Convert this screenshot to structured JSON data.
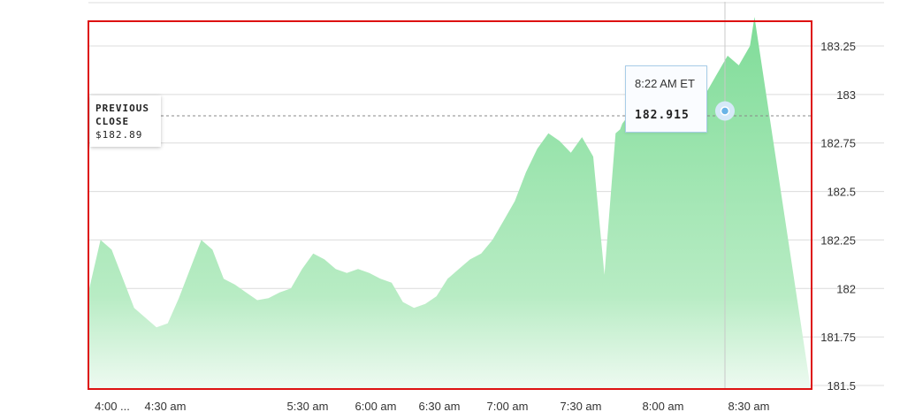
{
  "chart_data": {
    "type": "area",
    "x_tick_labels": [
      "4:00 ...",
      "4:30 am",
      "5:30 am",
      "6:00 am",
      "6:30 am",
      "7:00 am",
      "7:30 am",
      "8:00 am",
      "8:30 am"
    ],
    "y_tick_labels": [
      "183.25",
      "183",
      "182.75",
      "182.5",
      "182.25",
      "182",
      "181.75",
      "181.5"
    ],
    "y_ticks": [
      183.25,
      183,
      182.75,
      182.5,
      182.25,
      182,
      181.75,
      181.5
    ],
    "ylim": [
      181.5,
      183.4
    ],
    "grid": true,
    "previous_close": 182.89,
    "series": [
      {
        "x": [
          "4:00",
          "4:05",
          "4:10",
          "4:15",
          "4:20",
          "4:25",
          "4:30",
          "4:35",
          "4:40",
          "4:45",
          "4:50",
          "4:55",
          "5:00",
          "5:05",
          "5:10",
          "5:15",
          "5:20",
          "5:25",
          "5:30",
          "5:35",
          "5:40",
          "5:45",
          "5:50",
          "5:55",
          "6:00",
          "6:05",
          "6:10",
          "6:15",
          "6:20",
          "6:25",
          "6:30",
          "6:35",
          "6:40",
          "6:45",
          "6:50",
          "6:55",
          "7:00",
          "7:05",
          "7:10",
          "7:15",
          "7:20",
          "7:25",
          "7:30",
          "7:35",
          "7:40",
          "7:45",
          "7:50",
          "7:55",
          "7:57",
          "7:58",
          "8:00",
          "8:05",
          "8:10",
          "8:15",
          "8:20",
          "8:22",
          "8:25",
          "8:30",
          "8:35",
          "8:40",
          "8:45",
          "8:50",
          "8:55",
          "8:57"
        ],
        "y": [
          182.0,
          182.25,
          182.2,
          182.05,
          181.9,
          181.85,
          181.8,
          181.82,
          181.95,
          182.1,
          182.25,
          182.2,
          182.05,
          182.02,
          181.98,
          181.94,
          181.95,
          181.98,
          182.0,
          182.1,
          182.18,
          182.15,
          182.1,
          182.08,
          182.1,
          182.08,
          182.05,
          182.03,
          181.93,
          181.9,
          181.92,
          181.96,
          182.05,
          182.1,
          182.15,
          182.18,
          182.25,
          182.35,
          182.45,
          182.6,
          182.72,
          182.8,
          182.76,
          182.7,
          182.78,
          182.68,
          182.07,
          182.8,
          182.82,
          182.85,
          182.88,
          182.92,
          182.9,
          182.95,
          182.9,
          182.915,
          182.93,
          182.88,
          183.0,
          183.1,
          183.2,
          183.15,
          183.25,
          183.4
        ]
      }
    ]
  },
  "tooltip": {
    "time": "8:22 AM ET",
    "value": "182.915"
  },
  "previous_close_label": {
    "line1": "PREVIOUS",
    "line2": "CLOSE",
    "value": "$182.89"
  },
  "colors": {
    "area_top": "#7fdc98",
    "area_bottom": "#e9f8ec",
    "highlight_border": "#dd1111",
    "grid": "#d9d9d9",
    "crosshair": "#c8c8c8",
    "marker": "#6ab4e6"
  }
}
